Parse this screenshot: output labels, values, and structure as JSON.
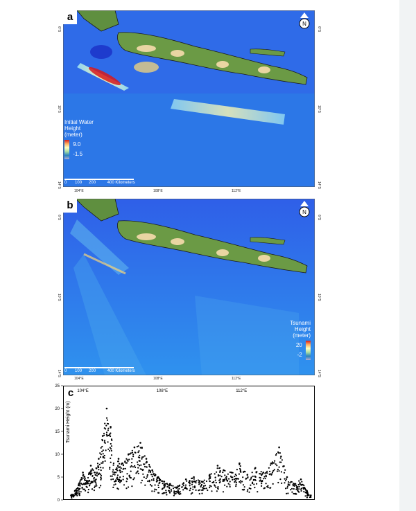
{
  "panels": {
    "a": {
      "letter": "a",
      "legend_title_lines": [
        "Initial Water",
        "Height",
        "(meter)"
      ],
      "legend_max": "9.0",
      "legend_min": "-1.5",
      "scale_labels": [
        "0",
        "100",
        "200",
        "400 Kilometers"
      ],
      "x_ticks": [
        "104°E",
        "108°E",
        "112°E"
      ],
      "y_ticks": [
        "6°S",
        "10°S",
        "14°S"
      ]
    },
    "b": {
      "letter": "b",
      "legend_title_lines": [
        "Tsunami",
        "Height",
        "(meter)"
      ],
      "legend_max": "20",
      "legend_min": "-2",
      "scale_labels": [
        "0",
        "100",
        "200",
        "400 Kilometers"
      ],
      "x_ticks": [
        "104°E",
        "108°E",
        "112°E"
      ],
      "y_ticks": [
        "6°S",
        "10°S",
        "14°S"
      ]
    },
    "c": {
      "letter": "c"
    }
  },
  "chart_data": {
    "type": "scatter",
    "title": "",
    "xlabel": "",
    "ylabel": "Tsunami Height (m)",
    "x_ticks": [
      "104°E",
      "108°E",
      "112°E"
    ],
    "xlim": [
      103.0,
      115.7
    ],
    "ylim": [
      0,
      25
    ],
    "y_ticks": [
      0,
      5,
      10,
      15,
      20,
      25
    ],
    "points_summary": [
      {
        "x": 103.4,
        "y": 1.0
      },
      {
        "x": 103.6,
        "y": 2.0
      },
      {
        "x": 103.8,
        "y": 3.5
      },
      {
        "x": 104.0,
        "y": 6.0
      },
      {
        "x": 104.2,
        "y": 4.0
      },
      {
        "x": 104.4,
        "y": 7.5
      },
      {
        "x": 104.6,
        "y": 6.0
      },
      {
        "x": 104.8,
        "y": 9.0
      },
      {
        "x": 105.0,
        "y": 14.0
      },
      {
        "x": 105.2,
        "y": 20.0
      },
      {
        "x": 105.4,
        "y": 16.0
      },
      {
        "x": 105.6,
        "y": 6.0
      },
      {
        "x": 105.8,
        "y": 9.0
      },
      {
        "x": 106.0,
        "y": 8.0
      },
      {
        "x": 106.3,
        "y": 10.0
      },
      {
        "x": 106.6,
        "y": 11.5
      },
      {
        "x": 106.9,
        "y": 12.5
      },
      {
        "x": 107.2,
        "y": 9.0
      },
      {
        "x": 107.5,
        "y": 6.5
      },
      {
        "x": 107.8,
        "y": 5.0
      },
      {
        "x": 108.1,
        "y": 4.0
      },
      {
        "x": 108.4,
        "y": 3.5
      },
      {
        "x": 108.8,
        "y": 3.0
      },
      {
        "x": 109.2,
        "y": 4.5
      },
      {
        "x": 109.6,
        "y": 5.0
      },
      {
        "x": 110.0,
        "y": 4.0
      },
      {
        "x": 110.4,
        "y": 5.5
      },
      {
        "x": 110.8,
        "y": 7.5
      },
      {
        "x": 111.1,
        "y": 6.5
      },
      {
        "x": 111.5,
        "y": 6.0
      },
      {
        "x": 111.9,
        "y": 8.0
      },
      {
        "x": 112.3,
        "y": 5.5
      },
      {
        "x": 112.7,
        "y": 7.0
      },
      {
        "x": 113.1,
        "y": 6.0
      },
      {
        "x": 113.5,
        "y": 8.0
      },
      {
        "x": 113.9,
        "y": 11.5
      },
      {
        "x": 114.3,
        "y": 5.0
      },
      {
        "x": 114.7,
        "y": 3.5
      },
      {
        "x": 115.0,
        "y": 4.5
      },
      {
        "x": 115.3,
        "y": 2.0
      },
      {
        "x": 115.5,
        "y": 1.0
      }
    ]
  },
  "colors": {
    "ocean": "#2f6be8",
    "land": "#5f8f3f",
    "coast": "#1a1a1a",
    "marker": "#000000"
  }
}
